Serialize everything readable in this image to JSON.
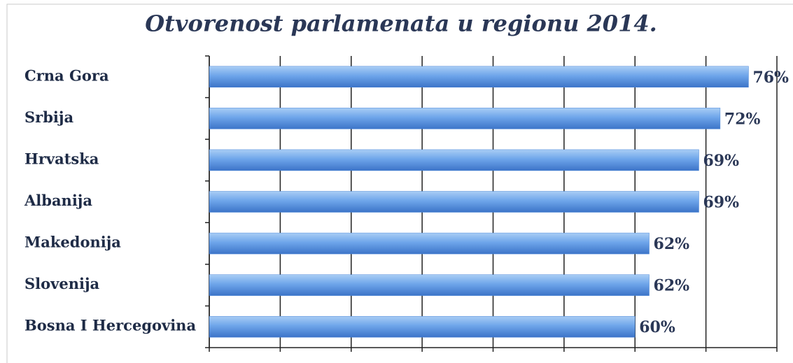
{
  "chart_data": {
    "type": "bar",
    "orientation": "horizontal",
    "title": "Otvorenost parlamenata u regionu 2014.",
    "categories": [
      "Crna Gora",
      "Srbija",
      "Hrvatska",
      "Albanija",
      "Makedonija",
      "Slovenija",
      "Bosna I Hercegovina"
    ],
    "values": [
      76,
      72,
      69,
      69,
      62,
      62,
      60
    ],
    "value_labels": [
      "76%",
      "72%",
      "69%",
      "69%",
      "62%",
      "62%",
      "60%"
    ],
    "color": "#4a86d8",
    "xlim": [
      0,
      80
    ],
    "xticks": [
      0,
      10,
      20,
      30,
      40,
      50,
      60,
      70,
      80
    ],
    "grid": true
  }
}
